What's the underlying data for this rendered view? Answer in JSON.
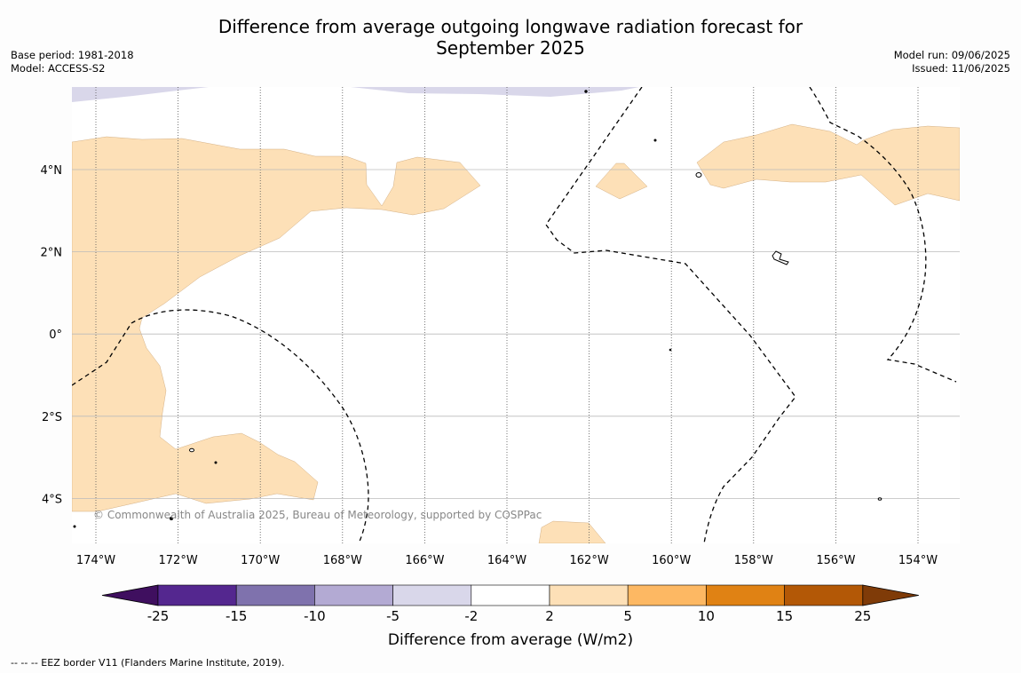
{
  "title_line1": "Difference from average outgoing longwave radiation forecast for",
  "title_line2": "September 2025",
  "meta_left": {
    "base_period": "Base period: 1981-2018",
    "model": "Model: ACCESS-S2"
  },
  "meta_right": {
    "model_run": "Model run: 09/06/2025",
    "issued": "Issued: 11/06/2025"
  },
  "map": {
    "lon_labels": [
      "174°W",
      "172°W",
      "170°W",
      "168°W",
      "166°W",
      "164°W",
      "162°W",
      "160°W",
      "158°W",
      "156°W",
      "154°W"
    ],
    "lat_labels": [
      "4°N",
      "2°N",
      "0°",
      "2°S",
      "4°S"
    ],
    "copyright": "© Commonwealth of Australia 2025, Bureau of Meteorology, supported by COSPPac"
  },
  "colorbar": {
    "title": "Difference from average (W/m2)",
    "tick_labels": [
      "-25",
      "-15",
      "-10",
      "-5",
      "-2",
      "2",
      "5",
      "10",
      "15",
      "25"
    ],
    "colors": [
      "#3f0f5f",
      "#54278f",
      "#7f72ad",
      "#b3aad3",
      "#d9d7ea",
      "#ffffff",
      "#fde0b7",
      "#fdb863",
      "#e08214",
      "#b35806",
      "#7f3b08"
    ]
  },
  "footnote": "--  --  -- EEZ border V11 (Flanders Marine Institute, 2019)."
}
